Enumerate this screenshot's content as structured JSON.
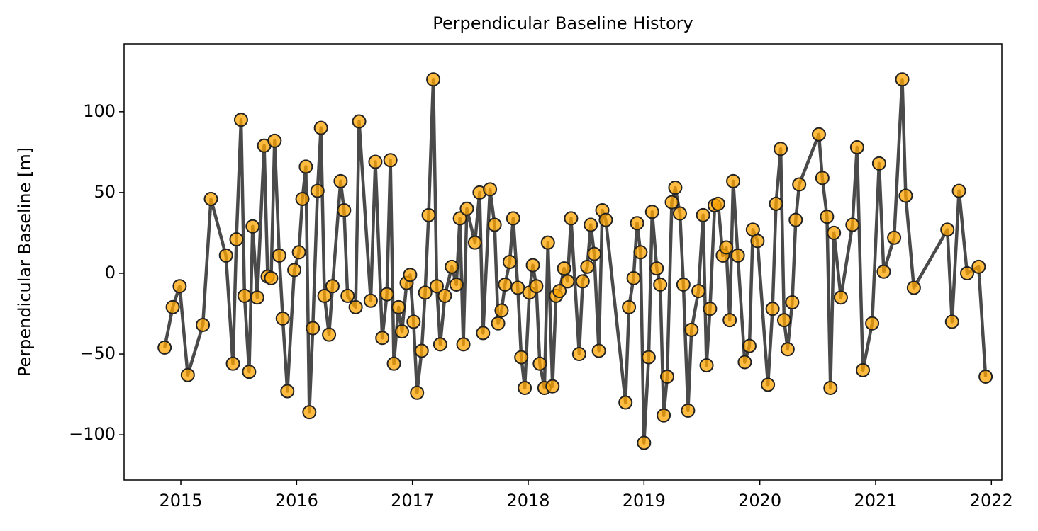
{
  "chart_data": {
    "type": "line",
    "title": "Perpendicular Baseline History",
    "ylabel": "Perpendicular Baseline [m]",
    "x": [
      2014.86,
      2014.93,
      2014.99,
      2015.06,
      2015.19,
      2015.26,
      2015.39,
      2015.45,
      2015.48,
      2015.52,
      2015.55,
      2015.59,
      2015.62,
      2015.66,
      2015.72,
      2015.75,
      2015.78,
      2015.81,
      2015.85,
      2015.88,
      2015.92,
      2015.98,
      2016.02,
      2016.05,
      2016.08,
      2016.11,
      2016.14,
      2016.18,
      2016.21,
      2016.24,
      2016.28,
      2016.31,
      2016.38,
      2016.41,
      2016.44,
      2016.51,
      2016.54,
      2016.64,
      2016.68,
      2016.74,
      2016.78,
      2016.81,
      2016.84,
      2016.88,
      2016.91,
      2016.95,
      2016.98,
      2017.01,
      2017.04,
      2017.08,
      2017.11,
      2017.14,
      2017.18,
      2017.21,
      2017.24,
      2017.28,
      2017.34,
      2017.38,
      2017.41,
      2017.44,
      2017.47,
      2017.54,
      2017.58,
      2017.61,
      2017.67,
      2017.71,
      2017.74,
      2017.77,
      2017.8,
      2017.84,
      2017.87,
      2017.91,
      2017.94,
      2017.97,
      2018.01,
      2018.04,
      2018.07,
      2018.1,
      2018.14,
      2018.17,
      2018.21,
      2018.24,
      2018.27,
      2018.31,
      2018.34,
      2018.37,
      2018.44,
      2018.47,
      2018.51,
      2018.54,
      2018.57,
      2018.61,
      2018.64,
      2018.67,
      2018.84,
      2018.87,
      2018.91,
      2018.94,
      2018.97,
      2019.0,
      2019.04,
      2019.07,
      2019.11,
      2019.14,
      2019.17,
      2019.2,
      2019.24,
      2019.27,
      2019.31,
      2019.34,
      2019.38,
      2019.41,
      2019.47,
      2019.51,
      2019.54,
      2019.57,
      2019.61,
      2019.64,
      2019.68,
      2019.71,
      2019.74,
      2019.77,
      2019.81,
      2019.87,
      2019.91,
      2019.94,
      2019.98,
      2020.07,
      2020.11,
      2020.14,
      2020.18,
      2020.21,
      2020.24,
      2020.28,
      2020.31,
      2020.34,
      2020.51,
      2020.54,
      2020.58,
      2020.61,
      2020.64,
      2020.7,
      2020.8,
      2020.84,
      2020.89,
      2020.97,
      2021.03,
      2021.07,
      2021.16,
      2021.23,
      2021.26,
      2021.33,
      2021.62,
      2021.66,
      2021.72,
      2021.79,
      2021.89,
      2021.95
    ],
    "values": [
      -46,
      -21,
      -8,
      -63,
      -32,
      46,
      11,
      -56,
      21,
      95,
      -14,
      -61,
      29,
      -15,
      79,
      -2,
      -3,
      82,
      11,
      -28,
      -73,
      2,
      13,
      46,
      66,
      -86,
      -34,
      51,
      90,
      -14,
      -38,
      -8,
      57,
      39,
      -14,
      -21,
      94,
      -17,
      69,
      -40,
      -13,
      70,
      -56,
      -21,
      -36,
      -6,
      -1,
      -30,
      -74,
      -48,
      -12,
      36,
      120,
      -8,
      -44,
      -14,
      4,
      -7,
      34,
      -44,
      40,
      19,
      50,
      -37,
      52,
      30,
      -31,
      -23,
      -7,
      7,
      34,
      -9,
      -52,
      -71,
      -12,
      5,
      -8,
      -56,
      -71,
      19,
      -70,
      -14,
      -11,
      3,
      -5,
      34,
      -50,
      -5,
      4,
      30,
      12,
      -48,
      39,
      33,
      -80,
      -21,
      -3,
      31,
      13,
      -105,
      -52,
      38,
      3,
      -7,
      -88,
      -64,
      44,
      53,
      37,
      -7,
      -85,
      -35,
      -11,
      36,
      -57,
      -22,
      42,
      43,
      11,
      16,
      -29,
      57,
      11,
      -55,
      -45,
      27,
      20,
      -69,
      -22,
      43,
      77,
      -29,
      -47,
      -18,
      33,
      55,
      86,
      59,
      35,
      -71,
      25,
      -15,
      30,
      78,
      -60,
      -31,
      68,
      1,
      22,
      120,
      48,
      -9,
      27,
      -30,
      51,
      0,
      4,
      -64
    ],
    "color": "#ffa500",
    "line_color": "#404040",
    "xlim": [
      2014.51,
      2022.09
    ],
    "xticks": [
      2015,
      2016,
      2017,
      2018,
      2019,
      2020,
      2021,
      2022
    ],
    "ylim": [
      -128,
      142
    ],
    "yticks": [
      {
        "value": -100,
        "label": "−100"
      },
      {
        "value": -50,
        "label": "−50"
      },
      0,
      50,
      100
    ]
  }
}
